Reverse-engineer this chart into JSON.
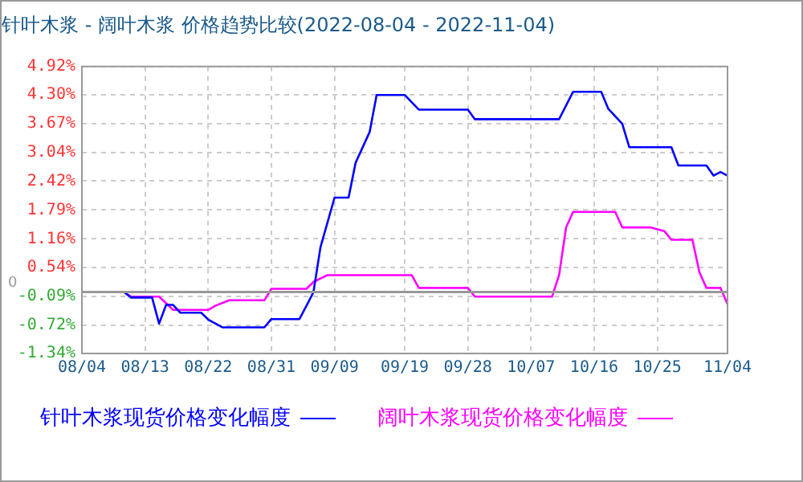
{
  "chart_data": {
    "type": "line",
    "title": "针叶木浆 - 阔叶木浆 价格趋势比较(2022-08-04 - 2022-11-04)",
    "series": [
      {
        "name": "针叶木浆现货价格变化幅度",
        "color": "#0000ff",
        "x": [
          "2022-08-04",
          "2022-08-10",
          "2022-08-11",
          "2022-08-14",
          "2022-08-15",
          "2022-08-16",
          "2022-08-17",
          "2022-08-18",
          "2022-08-21",
          "2022-08-22",
          "2022-08-24",
          "2022-08-30",
          "2022-08-31",
          "2022-09-04",
          "2022-09-05",
          "2022-09-06",
          "2022-09-07",
          "2022-09-09",
          "2022-09-11",
          "2022-09-12",
          "2022-09-14",
          "2022-09-15",
          "2022-09-19",
          "2022-09-21",
          "2022-09-28",
          "2022-09-29",
          "2022-10-11",
          "2022-10-13",
          "2022-10-17",
          "2022-10-18",
          "2022-10-20",
          "2022-10-21",
          "2022-10-27",
          "2022-10-28",
          "2022-11-01",
          "2022-11-02",
          "2022-11-03",
          "2022-11-04"
        ],
        "values": [
          0,
          0,
          -0.12,
          -0.12,
          -0.69,
          -0.28,
          -0.28,
          -0.45,
          -0.45,
          -0.6,
          -0.77,
          -0.77,
          -0.59,
          -0.59,
          -0.3,
          0,
          0.98,
          2.06,
          2.06,
          2.82,
          3.49,
          4.3,
          4.3,
          3.98,
          3.98,
          3.77,
          3.77,
          4.37,
          4.37,
          4.0,
          3.67,
          3.16,
          3.16,
          2.76,
          2.76,
          2.54,
          2.62,
          2.54
        ]
      },
      {
        "name": "阔叶木浆现货价格变化幅度",
        "color": "#ff00ff",
        "x": [
          "2022-08-04",
          "2022-08-10",
          "2022-08-11",
          "2022-08-15",
          "2022-08-17",
          "2022-08-22",
          "2022-08-23",
          "2022-08-25",
          "2022-08-30",
          "2022-08-31",
          "2022-09-05",
          "2022-09-06",
          "2022-09-08",
          "2022-09-20",
          "2022-09-21",
          "2022-09-28",
          "2022-09-29",
          "2022-10-10",
          "2022-10-11",
          "2022-10-12",
          "2022-10-13",
          "2022-10-19",
          "2022-10-20",
          "2022-10-24",
          "2022-10-26",
          "2022-10-27",
          "2022-10-30",
          "2022-10-31",
          "2022-11-01",
          "2022-11-03",
          "2022-11-04"
        ],
        "values": [
          0,
          0,
          -0.1,
          -0.1,
          -0.39,
          -0.39,
          -0.3,
          -0.18,
          -0.18,
          0.07,
          0.07,
          0.22,
          0.37,
          0.37,
          0.09,
          0.09,
          -0.1,
          -0.1,
          0.37,
          1.41,
          1.75,
          1.75,
          1.41,
          1.41,
          1.33,
          1.14,
          1.14,
          0.43,
          0.09,
          0.09,
          -0.26
        ]
      }
    ],
    "xlim": [
      "2022-08-04",
      "2022-11-04"
    ],
    "xticks": [
      {
        "value": "2022-08-04",
        "label": "08/04"
      },
      {
        "value": "2022-08-13",
        "label": "08/13"
      },
      {
        "value": "2022-08-22",
        "label": "08/22"
      },
      {
        "value": "2022-08-31",
        "label": "08/31"
      },
      {
        "value": "2022-09-09",
        "label": "09/09"
      },
      {
        "value": "2022-09-19",
        "label": "09/19"
      },
      {
        "value": "2022-09-28",
        "label": "09/28"
      },
      {
        "value": "2022-10-07",
        "label": "10/07"
      },
      {
        "value": "2022-10-16",
        "label": "10/16"
      },
      {
        "value": "2022-10-25",
        "label": "10/25"
      },
      {
        "value": "2022-11-04",
        "label": "11/04"
      }
    ],
    "ylim": [
      -1.34,
      4.92
    ],
    "yticks": [
      {
        "value": -1.34,
        "label": "-1.34%"
      },
      {
        "value": -0.72,
        "label": "-0.72%"
      },
      {
        "value": -0.09,
        "label": "-0.09%"
      },
      {
        "value": 0.54,
        "label": "0.54%"
      },
      {
        "value": 1.16,
        "label": "1.16%"
      },
      {
        "value": 1.79,
        "label": "1.79%"
      },
      {
        "value": 2.42,
        "label": "2.42%"
      },
      {
        "value": 3.04,
        "label": "3.04%"
      },
      {
        "value": 3.67,
        "label": "3.67%"
      },
      {
        "value": 4.3,
        "label": "4.30%"
      },
      {
        "value": 4.92,
        "label": "4.92%"
      }
    ],
    "ref_lines": [
      {
        "axis": "y",
        "value": 0,
        "label": "0",
        "color": "#999999"
      }
    ],
    "grid": true,
    "legend": "bottom",
    "line_style": "solid"
  }
}
